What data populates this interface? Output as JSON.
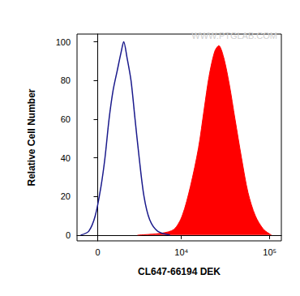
{
  "chart_data": {
    "type": "line",
    "xlabel": "CL647-66194 DEK",
    "ylabel": "Relative Cell Number",
    "annotations": [
      "WWW.PTGLAB.COM"
    ],
    "xlim": [
      -1300,
      135000
    ],
    "xticks": [
      0,
      {
        "value": 10000,
        "label": "10⁴"
      },
      {
        "value": 100000,
        "label": "10⁵"
      }
    ],
    "ylim": [
      -3,
      104
    ],
    "yticks": [
      0,
      20,
      40,
      60,
      80,
      100
    ],
    "grid": false,
    "series": [
      {
        "type": "line",
        "color": "#1a1a8c",
        "x": [
          -1056,
          -541,
          -146,
          195,
          440,
          692,
          951,
          1220,
          1505,
          1681,
          1928,
          2255,
          2607,
          2996,
          3493,
          4146,
          5232,
          7362
        ],
        "values": [
          0,
          2,
          10,
          25,
          40,
          60,
          75,
          85,
          95,
          100,
          92,
          80,
          60,
          40,
          20,
          8,
          2,
          0
        ]
      },
      {
        "type": "area",
        "color": "#ff0000",
        "x": [
          2836,
          5894,
          8218,
          10209,
          12663,
          15672,
          18173,
          20650,
          23937,
          26622,
          30211,
          35003,
          40605,
          48036,
          56880,
          68755,
          84960,
          104640
        ],
        "values": [
          0,
          1,
          3,
          10,
          25,
          45,
          65,
          82,
          95,
          98,
          92,
          78,
          60,
          40,
          22,
          10,
          3,
          0
        ]
      }
    ]
  }
}
